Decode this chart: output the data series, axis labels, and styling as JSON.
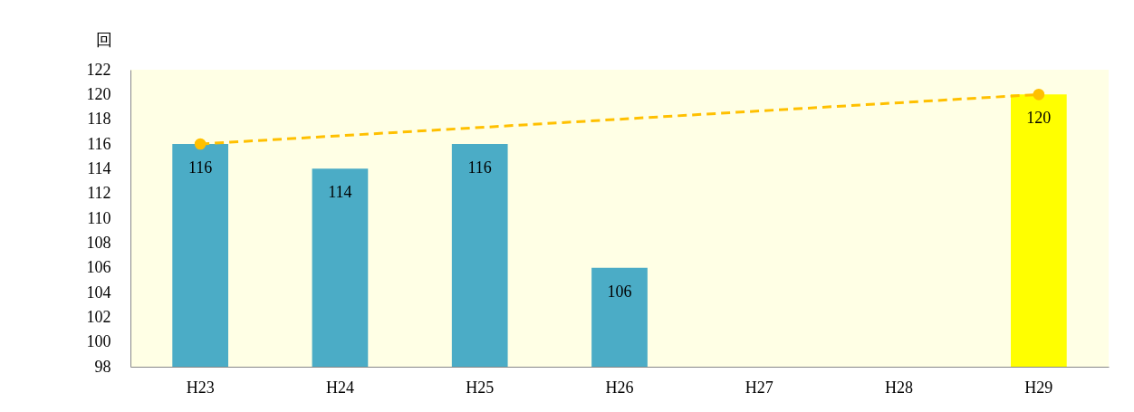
{
  "chart_data": {
    "type": "bar",
    "ylabel": "回",
    "categories": [
      "H23",
      "H24",
      "H25",
      "H26",
      "H27",
      "H28",
      "H29"
    ],
    "series": [
      {
        "values": [
          116,
          114,
          116,
          106,
          null,
          null,
          120
        ],
        "colors": [
          "#4bacc6",
          "#4bacc6",
          "#4bacc6",
          "#4bacc6",
          "#4bacc6",
          "#4bacc6",
          "#ffff00"
        ],
        "value_labels": [
          "116",
          "114",
          "116",
          "106",
          null,
          null,
          "120"
        ]
      },
      {
        "type": "line",
        "x": [
          "H23",
          "H29"
        ],
        "values": [
          116,
          120
        ],
        "color": "#ffc000",
        "marker": "circle",
        "line_style": "dashed"
      }
    ],
    "ylim": [
      98,
      122
    ],
    "yticks": [
      98,
      100,
      102,
      104,
      106,
      108,
      110,
      112,
      114,
      116,
      118,
      120,
      122
    ],
    "grid": false
  }
}
